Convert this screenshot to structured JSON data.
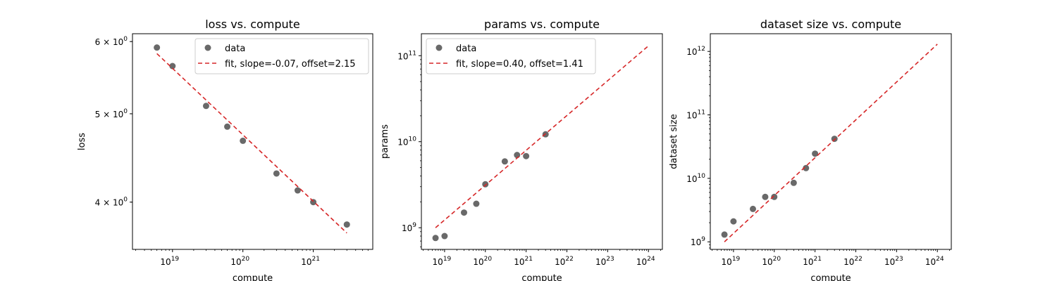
{
  "chart_data": [
    {
      "type": "scatter",
      "title": "loss vs. compute",
      "xlabel": "compute",
      "ylabel": "loss",
      "xscale": "log",
      "yscale": "log",
      "xlim": [
        2.7e+18,
        7e+21
      ],
      "ylim": [
        3.55,
        6.12
      ],
      "xticks": [
        {
          "value": 1e+19,
          "base": "10",
          "exp": "19"
        },
        {
          "value": 1e+20,
          "base": "10",
          "exp": "20"
        },
        {
          "value": 1e+21,
          "base": "10",
          "exp": "21"
        }
      ],
      "yticks": [
        {
          "value": 4,
          "base": "4 × 10",
          "exp": "0"
        },
        {
          "value": 5,
          "base": "5 × 10",
          "exp": "0"
        },
        {
          "value": 6,
          "base": "6 × 10",
          "exp": "0"
        }
      ],
      "series": [
        {
          "name": "data",
          "kind": "scatter",
          "color": "#696969",
          "points": [
            [
              6e+18,
              5.91
            ],
            [
              1e+19,
              5.64
            ],
            [
              3e+19,
              5.1
            ],
            [
              6e+19,
              4.84
            ],
            [
              1e+20,
              4.67
            ],
            [
              3e+20,
              4.3
            ],
            [
              6e+20,
              4.12
            ],
            [
              1e+21,
              4.0
            ],
            [
              3e+21,
              3.78
            ]
          ]
        },
        {
          "name": "fit, slope=-0.07, offset=2.15",
          "kind": "line",
          "color": "#d62728",
          "dash": "6,4",
          "points": [
            [
              6e+18,
              5.82
            ],
            [
              3e+21,
              3.7
            ]
          ]
        }
      ],
      "legend": "top-right"
    },
    {
      "type": "scatter",
      "title": "params vs. compute",
      "xlabel": "compute",
      "ylabel": "params",
      "xscale": "log",
      "yscale": "log",
      "xlim": [
        2.7e+18,
        2.2e+24
      ],
      "ylim": [
        560000000.0,
        180000000000.0
      ],
      "xticks": [
        {
          "value": 1e+19,
          "base": "10",
          "exp": "19"
        },
        {
          "value": 1e+20,
          "base": "10",
          "exp": "20"
        },
        {
          "value": 1e+21,
          "base": "10",
          "exp": "21"
        },
        {
          "value": 1e+22,
          "base": "10",
          "exp": "22"
        },
        {
          "value": 1e+23,
          "base": "10",
          "exp": "23"
        },
        {
          "value": 1e+24,
          "base": "10",
          "exp": "24"
        }
      ],
      "yticks": [
        {
          "value": 1000000000.0,
          "base": "10",
          "exp": "9"
        },
        {
          "value": 10000000000.0,
          "base": "10",
          "exp": "10"
        },
        {
          "value": 100000000000.0,
          "base": "10",
          "exp": "11"
        }
      ],
      "series": [
        {
          "name": "data",
          "kind": "scatter",
          "color": "#696969",
          "points": [
            [
              6e+18,
              760000000.0
            ],
            [
              1e+19,
              800000000.0
            ],
            [
              3e+19,
              1500000000.0
            ],
            [
              6e+19,
              1900000000.0
            ],
            [
              1e+20,
              3200000000.0
            ],
            [
              3e+20,
              5900000000.0
            ],
            [
              6e+20,
              7000000000.0
            ],
            [
              1e+21,
              6800000000.0
            ],
            [
              3e+21,
              12200000000.0
            ]
          ]
        },
        {
          "name": "fit, slope=0.40, offset=1.41",
          "kind": "line",
          "color": "#d62728",
          "dash": "6,4",
          "points": [
            [
              6e+18,
              1000000000.0
            ],
            [
              1e+24,
              130000000000.0
            ]
          ]
        }
      ],
      "legend": "top-left"
    },
    {
      "type": "scatter",
      "title": "dataset size vs. compute",
      "xlabel": "compute",
      "ylabel": "dataset size",
      "xscale": "log",
      "yscale": "log",
      "xlim": [
        2.7e+18,
        2.2e+24
      ],
      "ylim": [
        760000000.0,
        1900000000000.0
      ],
      "xticks": [
        {
          "value": 1e+19,
          "base": "10",
          "exp": "19"
        },
        {
          "value": 1e+20,
          "base": "10",
          "exp": "20"
        },
        {
          "value": 1e+21,
          "base": "10",
          "exp": "21"
        },
        {
          "value": 1e+22,
          "base": "10",
          "exp": "22"
        },
        {
          "value": 1e+23,
          "base": "10",
          "exp": "23"
        },
        {
          "value": 1e+24,
          "base": "10",
          "exp": "24"
        }
      ],
      "yticks": [
        {
          "value": 1000000000.0,
          "base": "10",
          "exp": "9"
        },
        {
          "value": 10000000000.0,
          "base": "10",
          "exp": "10"
        },
        {
          "value": 100000000000.0,
          "base": "10",
          "exp": "11"
        },
        {
          "value": 1000000000000.0,
          "base": "10",
          "exp": "12"
        }
      ],
      "series": [
        {
          "name": "data",
          "kind": "scatter",
          "color": "#696969",
          "points": [
            [
              6e+18,
              1300000000.0
            ],
            [
              1e+19,
              2100000000.0
            ],
            [
              3e+19,
              3300000000.0
            ],
            [
              6e+19,
              5100000000.0
            ],
            [
              1e+20,
              5100000000.0
            ],
            [
              3e+20,
              8500000000.0
            ],
            [
              6e+20,
              14500000000.0
            ],
            [
              1e+21,
              24500000000.0
            ],
            [
              3e+21,
              42000000000.0
            ]
          ]
        },
        {
          "name": "",
          "kind": "line",
          "color": "#d62728",
          "dash": "6,4",
          "points": [
            [
              6e+18,
              1000000000.0
            ],
            [
              1e+24,
              1300000000000.0
            ]
          ]
        }
      ],
      "legend": "none"
    }
  ]
}
